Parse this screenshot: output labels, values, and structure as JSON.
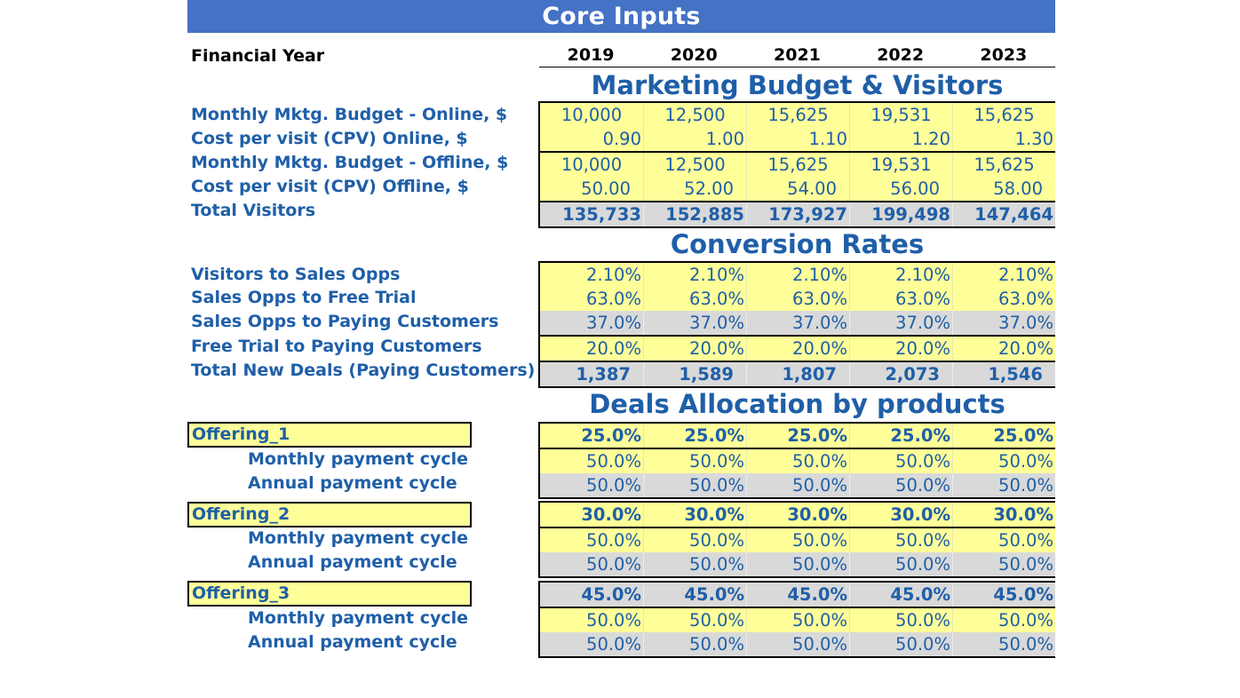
{
  "title": "Core Inputs",
  "financial_year_label": "Financial Year",
  "years": [
    "2019",
    "2020",
    "2021",
    "2022",
    "2023"
  ],
  "marketing": {
    "section_title": "Marketing Budget & Visitors",
    "rows": [
      {
        "label": "Monthly Mktg. Budget - Online, $",
        "values": [
          "10,000",
          "12,500",
          "15,625",
          "19,531",
          "15,625"
        ]
      },
      {
        "label": "Cost per visit (CPV) Online, $",
        "values": [
          "0.90",
          "1.00",
          "1.10",
          "1.20",
          "1.30"
        ]
      },
      {
        "label": "Monthly Mktg. Budget - Offline, $",
        "values": [
          "10,000",
          "12,500",
          "15,625",
          "19,531",
          "15,625"
        ]
      },
      {
        "label": "Cost per visit (CPV) Offline, $",
        "values": [
          "50.00",
          "52.00",
          "54.00",
          "56.00",
          "58.00"
        ]
      },
      {
        "label": "Total Visitors",
        "values": [
          "135,733",
          "152,885",
          "173,927",
          "199,498",
          "147,464"
        ]
      }
    ]
  },
  "conversion": {
    "section_title": "Conversion Rates",
    "rows": [
      {
        "label": "Visitors to Sales Opps",
        "values": [
          "2.10%",
          "2.10%",
          "2.10%",
          "2.10%",
          "2.10%"
        ]
      },
      {
        "label": "Sales Opps to Free Trial",
        "values": [
          "63.0%",
          "63.0%",
          "63.0%",
          "63.0%",
          "63.0%"
        ]
      },
      {
        "label": "Sales Opps to Paying Customers",
        "values": [
          "37.0%",
          "37.0%",
          "37.0%",
          "37.0%",
          "37.0%"
        ]
      },
      {
        "label": "Free Trial to Paying Customers",
        "values": [
          "20.0%",
          "20.0%",
          "20.0%",
          "20.0%",
          "20.0%"
        ]
      },
      {
        "label": "Total New Deals (Paying Customers)",
        "values": [
          "1,387",
          "1,589",
          "1,807",
          "2,073",
          "1,546"
        ]
      }
    ]
  },
  "allocation": {
    "section_title": "Deals Allocation by products",
    "offerings": [
      {
        "name": "Offering_1",
        "values": [
          "25.0%",
          "25.0%",
          "25.0%",
          "25.0%",
          "25.0%"
        ],
        "monthly_label": "Monthly payment cycle",
        "monthly_values": [
          "50.0%",
          "50.0%",
          "50.0%",
          "50.0%",
          "50.0%"
        ],
        "annual_label": "Annual payment cycle",
        "annual_values": [
          "50.0%",
          "50.0%",
          "50.0%",
          "50.0%",
          "50.0%"
        ]
      },
      {
        "name": "Offering_2",
        "values": [
          "30.0%",
          "30.0%",
          "30.0%",
          "30.0%",
          "30.0%"
        ],
        "monthly_label": "Monthly payment cycle",
        "monthly_values": [
          "50.0%",
          "50.0%",
          "50.0%",
          "50.0%",
          "50.0%"
        ],
        "annual_label": "Annual payment cycle",
        "annual_values": [
          "50.0%",
          "50.0%",
          "50.0%",
          "50.0%",
          "50.0%"
        ]
      },
      {
        "name": "Offering_3",
        "values": [
          "45.0%",
          "45.0%",
          "45.0%",
          "45.0%",
          "45.0%"
        ],
        "monthly_label": "Monthly payment cycle",
        "monthly_values": [
          "50.0%",
          "50.0%",
          "50.0%",
          "50.0%",
          "50.0%"
        ],
        "annual_label": "Annual payment cycle",
        "annual_values": [
          "50.0%",
          "50.0%",
          "50.0%",
          "50.0%",
          "50.0%"
        ]
      }
    ]
  },
  "colors": {
    "header_bar": "#4472c4",
    "input_cell": "#ffff99",
    "calc_cell": "#d9d9d9",
    "label_text": "#1f5fa8"
  }
}
